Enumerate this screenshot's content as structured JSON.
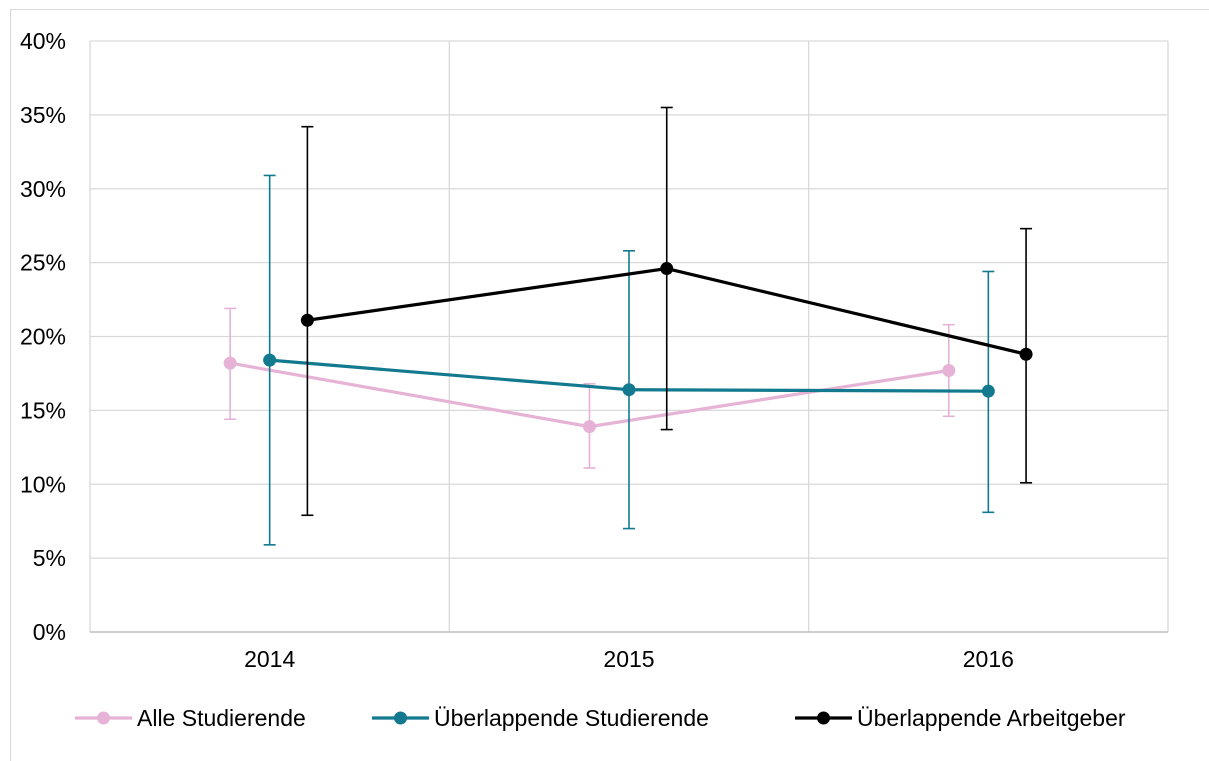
{
  "chart_data": {
    "type": "line",
    "title": "",
    "xlabel": "",
    "ylabel": "",
    "categories": [
      "2014",
      "2015",
      "2016"
    ],
    "y_ticks": [
      "0%",
      "5%",
      "10%",
      "15%",
      "20%",
      "25%",
      "30%",
      "35%",
      "40%"
    ],
    "ylim": [
      0,
      40
    ],
    "grid": true,
    "legend_position": "bottom",
    "error_bars": true,
    "series": [
      {
        "name": "Alle Studierende",
        "color": "#e6b3d6",
        "values": [
          18.2,
          13.9,
          17.7
        ],
        "error_low": [
          14.4,
          11.1,
          14.6
        ],
        "error_high": [
          21.9,
          16.8,
          20.8
        ]
      },
      {
        "name": "Überlappende Studierende",
        "color": "#12798f",
        "values": [
          18.4,
          16.4,
          16.3
        ],
        "error_low": [
          5.9,
          7.0,
          8.1
        ],
        "error_high": [
          30.9,
          25.8,
          24.4
        ]
      },
      {
        "name": "Überlappende Arbeitgeber",
        "color": "#000000",
        "values": [
          21.1,
          24.6,
          18.8
        ],
        "error_low": [
          7.9,
          13.7,
          10.1
        ],
        "error_high": [
          34.2,
          35.5,
          27.3
        ]
      }
    ]
  }
}
